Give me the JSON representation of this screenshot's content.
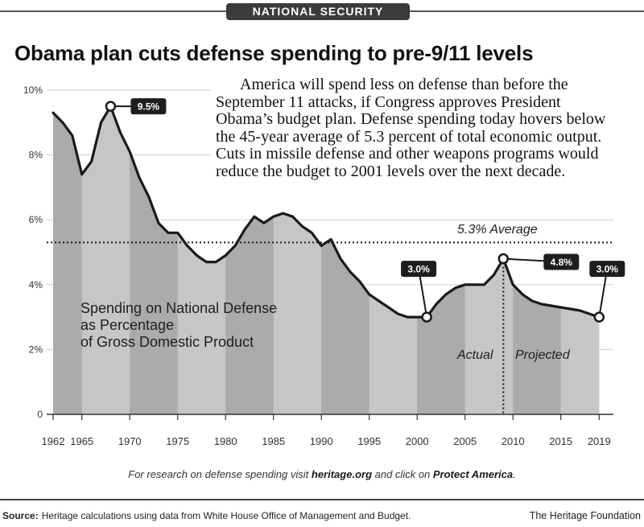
{
  "header": {
    "section": "NATIONAL SECURITY"
  },
  "description": {
    "lines": [
      "America will spend less on defense than before the",
      "September 11 attacks, if Congress approves President",
      "Obama’s budget plan. Defense spending today hovers below",
      "the 45-year average of 5.3 percent of total economic output.",
      "Cuts in missile defense and other weapons programs would",
      "reduce the budget to 2001 levels over the next decade."
    ]
  },
  "chart_data": {
    "type": "area",
    "title": "Obama plan cuts defense spending to pre-9/11 levels",
    "series_label": [
      "Spending on National Defense",
      "as Percentage",
      "of Gross Domestic Product"
    ],
    "x": [
      1962,
      1963,
      1964,
      1965,
      1966,
      1967,
      1968,
      1969,
      1970,
      1971,
      1972,
      1973,
      1974,
      1975,
      1976,
      1977,
      1978,
      1979,
      1980,
      1981,
      1982,
      1983,
      1984,
      1985,
      1986,
      1987,
      1988,
      1989,
      1990,
      1991,
      1992,
      1993,
      1994,
      1995,
      1996,
      1997,
      1998,
      1999,
      2000,
      2001,
      2002,
      2003,
      2004,
      2005,
      2006,
      2007,
      2008,
      2009,
      2010,
      2011,
      2012,
      2013,
      2014,
      2015,
      2016,
      2017,
      2018,
      2019
    ],
    "series": [
      {
        "values": [
          9.3,
          9.0,
          8.6,
          7.4,
          7.8,
          9.0,
          9.5,
          8.7,
          8.1,
          7.3,
          6.7,
          5.9,
          5.6,
          5.6,
          5.2,
          4.9,
          4.7,
          4.7,
          4.9,
          5.2,
          5.7,
          6.1,
          5.9,
          6.1,
          6.2,
          6.1,
          5.8,
          5.6,
          5.2,
          5.4,
          4.8,
          4.4,
          4.1,
          3.7,
          3.5,
          3.3,
          3.1,
          3.0,
          3.0,
          3.0,
          3.4,
          3.7,
          3.9,
          4.0,
          4.0,
          4.0,
          4.3,
          4.8,
          4.0,
          3.7,
          3.5,
          3.4,
          3.35,
          3.3,
          3.25,
          3.2,
          3.1,
          3.0
        ]
      }
    ],
    "xlim": [
      1962,
      2019
    ],
    "ylim": [
      0,
      10
    ],
    "x_ticks": [
      1962,
      1965,
      1970,
      1975,
      1980,
      1985,
      1990,
      1995,
      2000,
      2005,
      2010,
      2015,
      2019
    ],
    "y_ticks": [
      {
        "value": 10,
        "label": "10%"
      },
      {
        "value": 8,
        "label": "8%"
      },
      {
        "value": 6,
        "label": "6%"
      },
      {
        "value": 4,
        "label": "4%"
      },
      {
        "value": 2,
        "label": "2%"
      },
      {
        "value": 0,
        "label": "0"
      }
    ],
    "average": {
      "value": 5.3,
      "label": "5.3% Average"
    },
    "split": {
      "x": 2009,
      "left_label": "Actual",
      "right_label": "Projected"
    },
    "annotations": [
      {
        "x": 1968,
        "y": 9.5,
        "label": "9.5%"
      },
      {
        "x": 2001,
        "y": 3.0,
        "label": "3.0%"
      },
      {
        "x": 2009,
        "y": 4.8,
        "label": "4.8%"
      },
      {
        "x": 2019,
        "y": 3.0,
        "label": "3.0%"
      }
    ],
    "grid": true,
    "colors": {
      "line": "#1a1a1a",
      "area": "#ababab",
      "band": "#ffffff",
      "grid": "#cfcfcf",
      "label_box": "#1e1e1e",
      "label_text": "#ffffff",
      "axis_text": "#333333"
    }
  },
  "footer": {
    "prefix": "For research on defense spending visit ",
    "link": "heritage.org",
    "middle": " and click on ",
    "cta": "Protect America",
    "suffix": "."
  },
  "source": {
    "label": "Source:",
    "text": "Heritage calculations using data from White House Office of Management and Budget."
  },
  "credit": "The Heritage Foundation"
}
